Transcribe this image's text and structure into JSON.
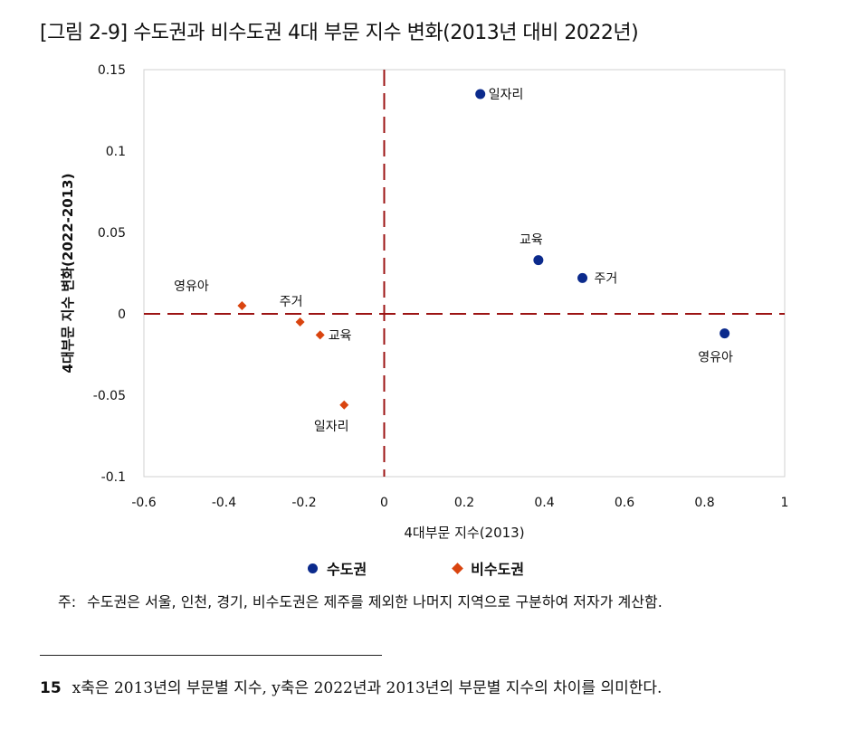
{
  "figure_title": "[그림 2-9] 수도권과 비수도권 4대 부문 지수 변화(2013년 대비 2022년)",
  "chart_data": {
    "type": "scatter",
    "xlabel": "4대부문 지수(2013)",
    "ylabel": "4대부문 지수 변화(2022-2013)",
    "xlim": [
      -0.6,
      1
    ],
    "ylim": [
      -0.1,
      0.15
    ],
    "x_ticks": [
      "-0.6",
      "-0.4",
      "-0.2",
      "0",
      "0.2",
      "0.4",
      "0.6",
      "0.8",
      "1"
    ],
    "y_ticks": [
      "0.15",
      "0.1",
      "0.05",
      "0",
      "-0.05",
      "-0.1"
    ],
    "reference_lines": {
      "x": 0,
      "y": 0
    },
    "series": [
      {
        "name": "수도권",
        "marker": "circle",
        "color": "#0b2a8c",
        "points": [
          {
            "label": "일자리",
            "x": 0.24,
            "y": 0.135
          },
          {
            "label": "교육",
            "x": 0.385,
            "y": 0.033
          },
          {
            "label": "주거",
            "x": 0.495,
            "y": 0.022
          },
          {
            "label": "영유아",
            "x": 0.85,
            "y": -0.012
          }
        ]
      },
      {
        "name": "비수도권",
        "marker": "diamond",
        "color": "#d9440f",
        "points": [
          {
            "label": "영유아",
            "x": -0.355,
            "y": 0.005
          },
          {
            "label": "주거",
            "x": -0.21,
            "y": -0.005
          },
          {
            "label": "교육",
            "x": -0.16,
            "y": -0.013
          },
          {
            "label": "일자리",
            "x": -0.1,
            "y": -0.056
          }
        ]
      }
    ],
    "reference_line_color": "#9c1414"
  },
  "legend": {
    "items": [
      "수도권",
      "비수도권"
    ]
  },
  "note": {
    "prefix": "주:",
    "text": "수도권은 서울, 인천, 경기, 비수도권은 제주를 제외한 나머지 지역으로 구분하여 저자가 계산함."
  },
  "footnote": {
    "number": "15",
    "text": "x축은 2013년의 부문별 지수, y축은 2022년과 2013년의 부문별 지수의 차이를 의미한다."
  }
}
